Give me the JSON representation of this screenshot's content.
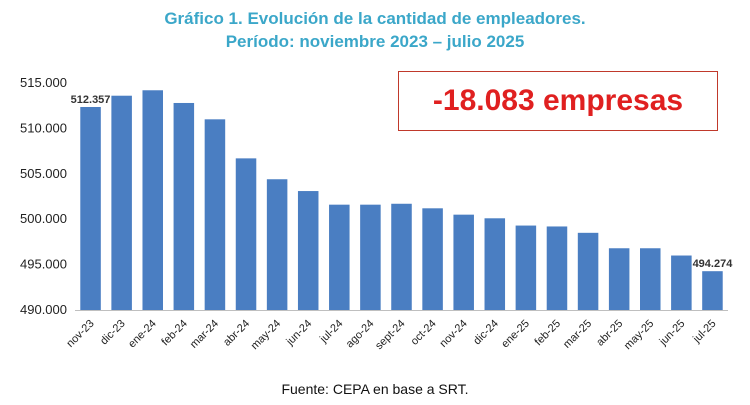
{
  "header": {
    "title_line1": "Gráfico 1. Evolución de la cantidad de empleadores.",
    "title_line2": "Período: noviembre 2023 – julio 2025"
  },
  "callout": {
    "text": "-18.083 empresas"
  },
  "source": "Fuente: CEPA en base a SRT.",
  "colors": {
    "title": "#3BA7C9",
    "bar": "#4A7EC2",
    "callout": "#E02020"
  },
  "chart_data": {
    "type": "bar",
    "categories": [
      "nov-23",
      "dic-23",
      "ene-24",
      "feb-24",
      "mar-24",
      "abr-24",
      "may-24",
      "jun-24",
      "jul-24",
      "ago-24",
      "sept-24",
      "oct-24",
      "nov-24",
      "dic-24",
      "ene-25",
      "feb-25",
      "mar-25",
      "abr-25",
      "may-25",
      "jun-25",
      "jul-25"
    ],
    "values": [
      512357,
      513600,
      514200,
      512800,
      511000,
      506700,
      504400,
      503100,
      501600,
      501600,
      501700,
      501200,
      500500,
      500100,
      499300,
      499200,
      498500,
      496800,
      496800,
      496000,
      494274
    ],
    "data_labels": {
      "nov-23": "512.357",
      "jul-25": "494.274"
    },
    "ytick_labels": [
      "490.000",
      "495.000",
      "500.000",
      "505.000",
      "510.000",
      "515.000"
    ],
    "ylim": [
      490000,
      515000
    ],
    "grid": false,
    "legend": "none"
  }
}
